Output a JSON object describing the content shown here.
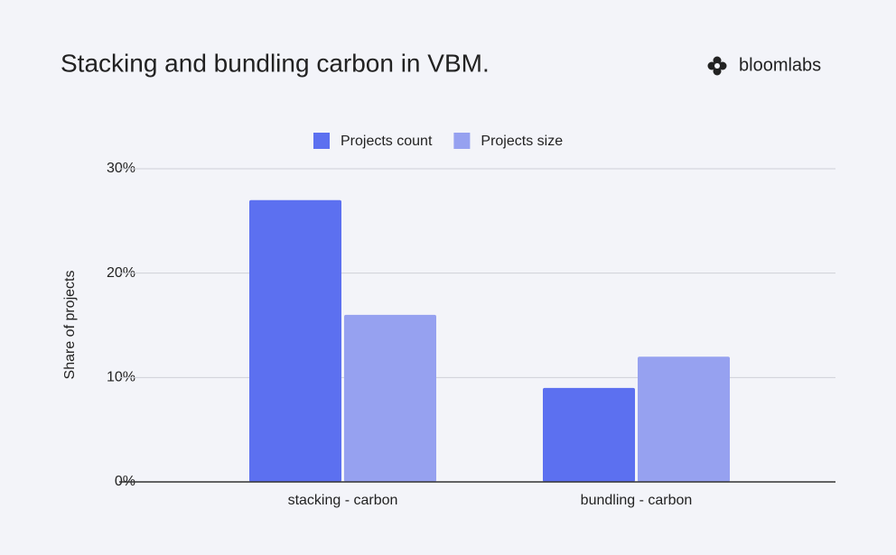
{
  "chart_data": {
    "type": "bar",
    "title": "Stacking and bundling carbon in VBM.",
    "brand": "bloomlabs",
    "y_label": "Share of projects",
    "categories": [
      "stacking - carbon",
      "bundling - carbon"
    ],
    "series": [
      {
        "name": "Projects count",
        "color": "#5c70f0",
        "values": [
          27,
          9
        ]
      },
      {
        "name": "Projects size",
        "color": "#96a1f0",
        "values": [
          16,
          12
        ]
      }
    ],
    "ylim": [
      0,
      30
    ],
    "yticks": [
      {
        "value": 0,
        "label": "0%"
      },
      {
        "value": 10,
        "label": "10%"
      },
      {
        "value": 20,
        "label": "20%"
      },
      {
        "value": 30,
        "label": "30%"
      }
    ],
    "grid": true,
    "legend": "top"
  }
}
